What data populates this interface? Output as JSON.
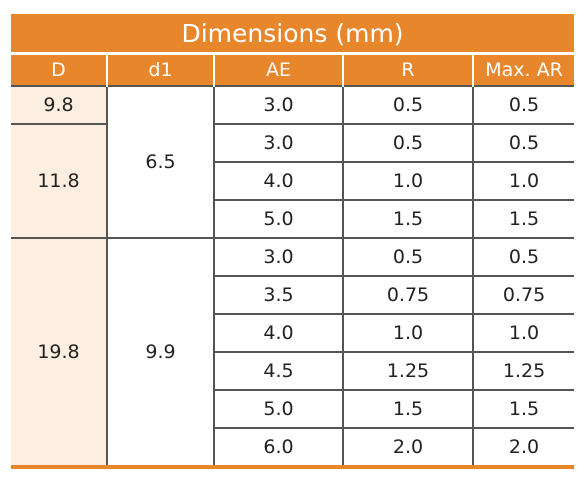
{
  "table": {
    "title": "Dimensions (mm)",
    "headers": [
      "D",
      "d1",
      "AE",
      "R",
      "Max. AR"
    ],
    "groups": [
      {
        "D": "9.8",
        "rows": [
          {
            "AE": "3.0",
            "R": "0.5",
            "MaxAR": "0.5"
          }
        ]
      },
      {
        "D": "11.8",
        "rows": [
          {
            "AE": "3.0",
            "R": "0.5",
            "MaxAR": "0.5"
          },
          {
            "AE": "4.0",
            "R": "1.0",
            "MaxAR": "1.0"
          },
          {
            "AE": "5.0",
            "R": "1.5",
            "MaxAR": "1.5"
          }
        ]
      },
      {
        "D": "19.8",
        "rows": [
          {
            "AE": "3.0",
            "R": "0.5",
            "MaxAR": "0.5"
          },
          {
            "AE": "3.5",
            "R": "0.75",
            "MaxAR": "0.75"
          },
          {
            "AE": "4.0",
            "R": "1.0",
            "MaxAR": "1.0"
          },
          {
            "AE": "4.5",
            "R": "1.25",
            "MaxAR": "1.25"
          },
          {
            "AE": "5.0",
            "R": "1.5",
            "MaxAR": "1.5"
          },
          {
            "AE": "6.0",
            "R": "2.0",
            "MaxAR": "2.0"
          }
        ]
      }
    ],
    "d1_groups": [
      "6.5",
      "9.9"
    ]
  },
  "colors": {
    "header_bg": "#e8862c",
    "header_text": "#ffffff",
    "d_column_bg": "#fcefe2",
    "grid_line": "#555555"
  }
}
